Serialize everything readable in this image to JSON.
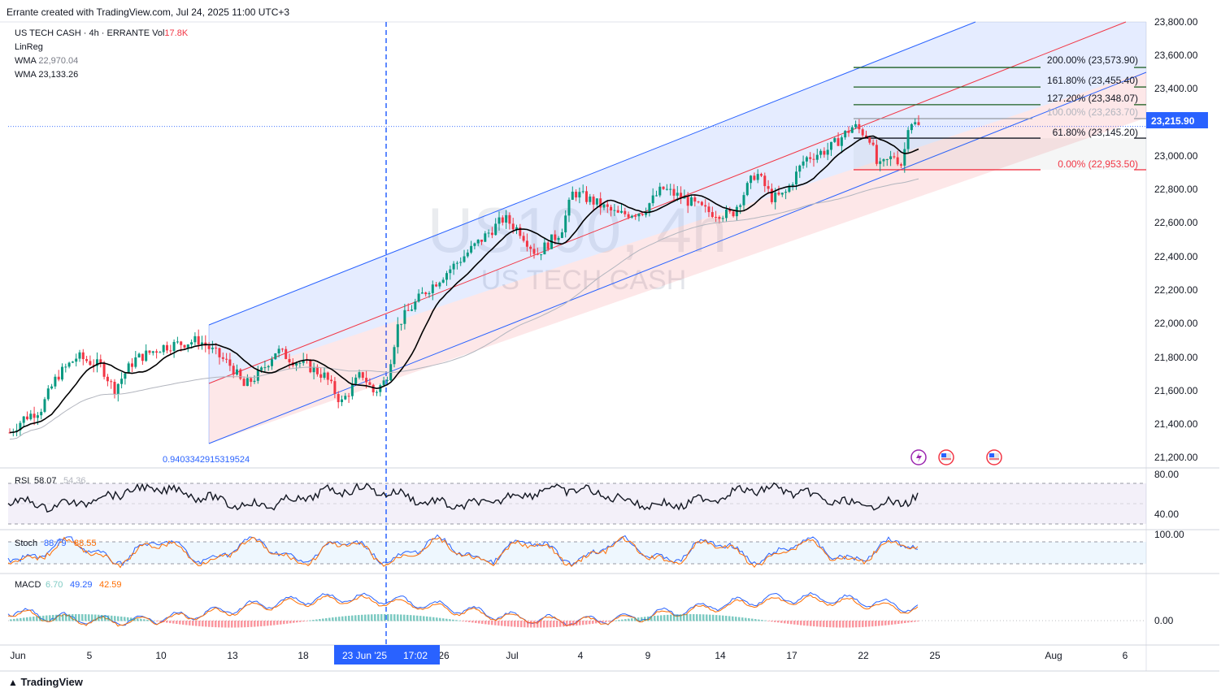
{
  "caption": "Errante created with TradingView.com, Jul 24, 2025 11:00 UTC+3",
  "legend": {
    "symbol": "US TECH CASH · 4h · ERRANTE",
    "vol_label": "Vol",
    "vol_value": "17.8K",
    "linreg": "LinReg",
    "wma1_label": "WMA",
    "wma1_value": "22,970.04",
    "wma2_label": "WMA",
    "wma2_value": "23,133.26"
  },
  "watermark": {
    "line1": "US100, 4h",
    "line2": "US TECH CASH"
  },
  "regression_label": "0.9403342915319524",
  "price_axis": {
    "ticks": [
      "23,800.00",
      "23,600.00",
      "23,400.00",
      "23,200.00",
      "23,000.00",
      "22,800.00",
      "22,600.00",
      "22,400.00",
      "22,200.00",
      "22,000.00",
      "21,800.00",
      "21,600.00",
      "21,400.00",
      "21,200.00"
    ],
    "current_price": "23,215.90"
  },
  "fib_levels": [
    {
      "label": "200.00% (23,573.90)",
      "color": "#1b5e20"
    },
    {
      "label": "161.80% (23,455.40)",
      "color": "#1b5e20"
    },
    {
      "label": "127.20% (23,348.07)",
      "color": "#1b5e20"
    },
    {
      "label": "100.00% (23,263.70)",
      "color": "#9598a1"
    },
    {
      "label": "61.80% (23,145.20)",
      "color": "#131722"
    },
    {
      "label": "0.00% (22,953.50)",
      "color": "#f23645"
    }
  ],
  "rsi": {
    "label": "RSI",
    "value": "58.07",
    "value2": "54.36",
    "ticks": [
      "80.00",
      "40.00"
    ]
  },
  "stoch": {
    "label": "Stoch",
    "k": "88.79",
    "d": "88.55",
    "tick": "100.00"
  },
  "macd": {
    "label": "MACD",
    "hist": "6.70",
    "macd": "49.29",
    "signal": "42.59",
    "tick": "0.00"
  },
  "time_axis": {
    "labels": [
      "Jun",
      "5",
      "10",
      "13",
      "18",
      "26",
      "Jul",
      "4",
      "9",
      "14",
      "17",
      "22",
      "25",
      "Aug",
      "6"
    ],
    "highlight": "23 Jun '25",
    "highlight_time": "17:02"
  },
  "footer": "TradingView",
  "chart_data": {
    "type": "candlestick",
    "title": "US100, 4h",
    "ylim": [
      21150,
      23850
    ],
    "current_price": 23215.9,
    "fib_levels": [
      23573.9,
      23455.4,
      23348.07,
      23263.7,
      23145.2,
      22953.5
    ],
    "colors": {
      "up": "#089981",
      "down": "#f23645",
      "wma_fast": "#000000",
      "wma_slow": "#b2b5be",
      "channel_upper": "#2962ff",
      "channel_mid": "#f23645"
    }
  }
}
